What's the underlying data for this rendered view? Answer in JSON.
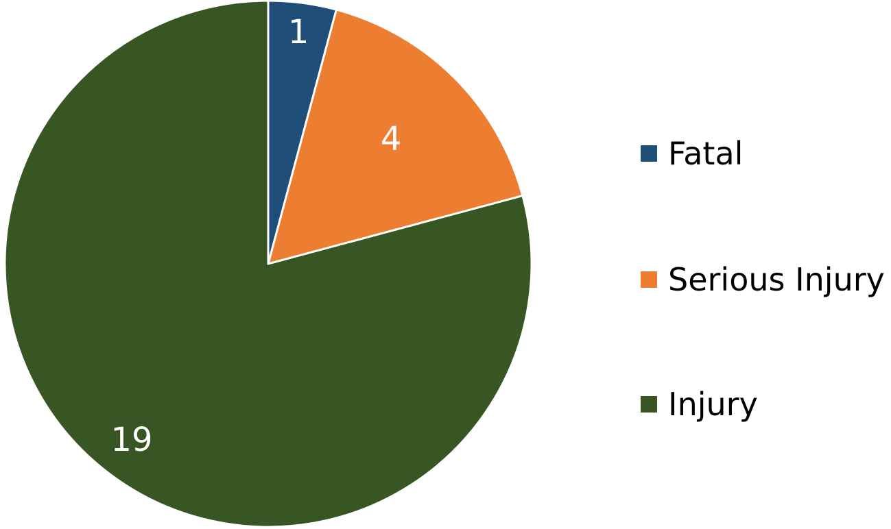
{
  "chart_data": {
    "type": "pie",
    "categories": [
      "Fatal",
      "Serious Injury",
      "Injury"
    ],
    "values": [
      1,
      4,
      19
    ],
    "colors": [
      "#1f4e79",
      "#ed7d31",
      "#375623"
    ],
    "legend_position": "right",
    "data_labels": [
      "1",
      "4",
      "19"
    ]
  },
  "legend": {
    "items": [
      {
        "label": "Fatal",
        "color": "#1f4e79"
      },
      {
        "label": "Serious Injury",
        "color": "#ed7d31"
      },
      {
        "label": "Injury",
        "color": "#375623"
      }
    ]
  }
}
